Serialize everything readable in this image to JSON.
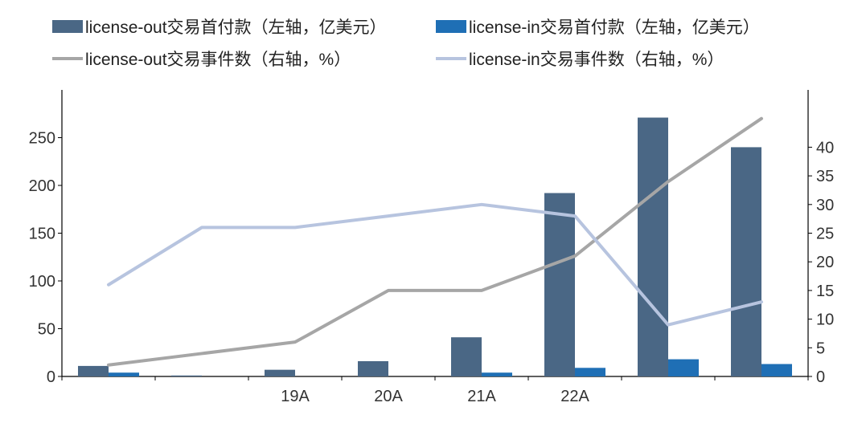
{
  "legend": {
    "placement": "top",
    "items": [
      {
        "label": "license-out交易首付款（左轴，亿美元）",
        "kind": "bar",
        "color": "#4a6785"
      },
      {
        "label": "license-in交易首付款（左轴，亿美元）",
        "kind": "bar",
        "color": "#1f6fb5"
      },
      {
        "label": "license-out交易事件数（右轴，%）",
        "kind": "line",
        "color": "#a6a6a6"
      },
      {
        "label": "license-in交易事件数（右轴，%）",
        "kind": "line",
        "color": "#b7c4df"
      }
    ]
  },
  "chart_data": {
    "type": "bar",
    "title": "",
    "xlabel": "",
    "ylabel": "",
    "grid": false,
    "categories": [
      "",
      "",
      "19A",
      "20A",
      "21A",
      "22A",
      "",
      ""
    ],
    "y_left": {
      "lim": [
        0,
        300
      ],
      "ticks": [
        0,
        50,
        100,
        150,
        200,
        250
      ]
    },
    "y_right": {
      "lim": [
        0,
        50
      ],
      "ticks": [
        0,
        5,
        10,
        15,
        20,
        25,
        30,
        35,
        40
      ]
    },
    "series": [
      {
        "name": "license-out交易首付款（左轴，亿美元）",
        "type": "bar",
        "axis": "left",
        "color": "#4a6785",
        "values": [
          11,
          1,
          7,
          16,
          41,
          192,
          271,
          240
        ]
      },
      {
        "name": "license-in交易首付款（左轴，亿美元）",
        "type": "bar",
        "axis": "left",
        "color": "#1f6fb5",
        "values": [
          4,
          0,
          0,
          0,
          4,
          9,
          18,
          13
        ]
      },
      {
        "name": "license-out交易事件数（右轴，%）",
        "type": "line",
        "axis": "right",
        "color": "#a6a6a6",
        "values": [
          2,
          4,
          6,
          15,
          15,
          21,
          34,
          45
        ]
      },
      {
        "name": "license-in交易事件数（右轴，%）",
        "type": "line",
        "axis": "right",
        "color": "#b7c4df",
        "values": [
          16,
          26,
          26,
          28,
          30,
          28,
          9,
          13
        ]
      }
    ]
  }
}
